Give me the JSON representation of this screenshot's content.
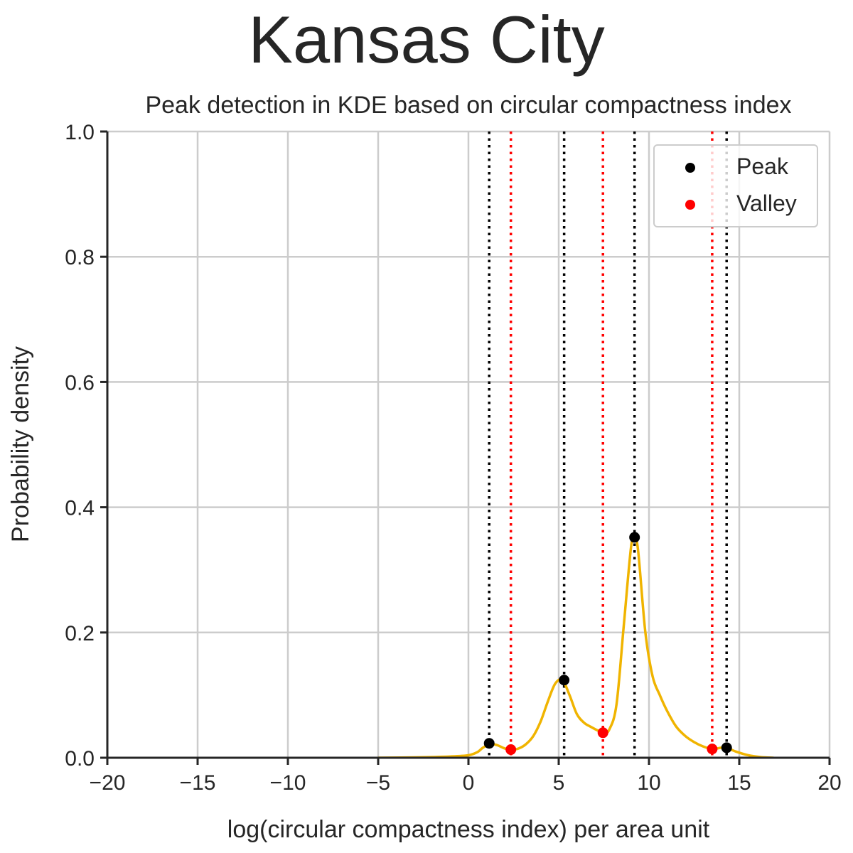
{
  "suptitle": "Kansas City",
  "chart_data": {
    "type": "line",
    "title": "Peak detection in KDE based on circular compactness index",
    "xlabel": "log(circular compactness index) per area unit",
    "ylabel": "Probability density",
    "xlim": [
      -20,
      20
    ],
    "ylim": [
      0,
      1.0
    ],
    "xticks": [
      -20,
      -15,
      -10,
      -5,
      0,
      5,
      10,
      15,
      20
    ],
    "xtick_labels": [
      "−20",
      "−15",
      "−10",
      "−5",
      "0",
      "5",
      "10",
      "15",
      "20"
    ],
    "yticks": [
      0.0,
      0.2,
      0.4,
      0.6,
      0.8,
      1.0
    ],
    "ytick_labels": [
      "0.0",
      "0.2",
      "0.4",
      "0.6",
      "0.8",
      "1.0"
    ],
    "grid": true,
    "legend_position": "top-right",
    "kde_color": "#f0b400",
    "kde": {
      "x": [
        -5,
        -3,
        -1,
        0,
        0.5,
        0.8,
        1.2,
        1.6,
        2.0,
        2.4,
        2.8,
        3.2,
        3.6,
        4.0,
        4.4,
        4.8,
        5.2,
        5.6,
        6.0,
        6.4,
        6.8,
        7.2,
        7.5,
        7.8,
        8.2,
        8.6,
        9.0,
        9.2,
        9.4,
        9.8,
        10.2,
        10.6,
        11.0,
        11.5,
        12.0,
        12.5,
        13.0,
        13.5,
        14.0,
        14.3,
        14.8,
        15.5,
        16.2,
        16.9
      ],
      "y": [
        0.0,
        0.0005,
        0.002,
        0.004,
        0.009,
        0.016,
        0.022,
        0.02,
        0.015,
        0.013,
        0.015,
        0.022,
        0.035,
        0.058,
        0.09,
        0.118,
        0.124,
        0.1,
        0.07,
        0.056,
        0.049,
        0.043,
        0.04,
        0.045,
        0.085,
        0.21,
        0.335,
        0.352,
        0.33,
        0.2,
        0.13,
        0.1,
        0.075,
        0.05,
        0.035,
        0.025,
        0.018,
        0.014,
        0.016,
        0.016,
        0.01,
        0.004,
        0.001,
        0.0
      ]
    },
    "series": [
      {
        "name": "Peak",
        "color": "#000000",
        "x": [
          1.15,
          5.3,
          9.2,
          14.3
        ],
        "y": [
          0.023,
          0.124,
          0.352,
          0.016
        ]
      },
      {
        "name": "Valley",
        "color": "#ff0000",
        "x": [
          2.35,
          7.45,
          13.5
        ],
        "y": [
          0.013,
          0.04,
          0.014
        ]
      }
    ]
  }
}
